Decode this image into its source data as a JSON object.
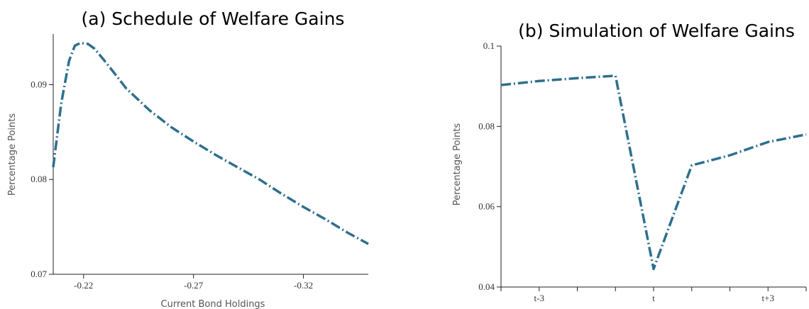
{
  "chart_data": [
    {
      "type": "line",
      "title": "(a) Schedule of Welfare Gains",
      "xlabel": "Current Bond Holdings",
      "ylabel": "Percentage Points",
      "x_reversed": true,
      "xlim": [
        -0.2062,
        -0.3495
      ],
      "ylim": [
        0.07,
        0.095
      ],
      "xticks": [
        -0.27,
        -0.22,
        -0.32
      ],
      "xtick_labels": [
        "-0.27",
        "-0.22",
        "-0.32"
      ],
      "yticks": [
        0.07,
        0.08,
        0.09
      ],
      "ytick_labels": [
        "0.07",
        "0.08",
        "0.09"
      ],
      "grid": false,
      "series": [
        {
          "color": "#2e6f8e",
          "x": [
            -0.2062,
            -0.2098,
            -0.2134,
            -0.216,
            -0.2186,
            -0.222,
            -0.225,
            -0.2307,
            -0.2394,
            -0.25,
            -0.26,
            -0.27,
            -0.28,
            -0.29,
            -0.3,
            -0.31,
            -0.32,
            -0.33,
            -0.34,
            -0.3495
          ],
          "y": [
            0.0813,
            0.088,
            0.0925,
            0.0941,
            0.0944,
            0.0943,
            0.0938,
            0.0922,
            0.0896,
            0.0873,
            0.0855,
            0.084,
            0.0826,
            0.0813,
            0.08,
            0.0785,
            0.0771,
            0.0758,
            0.0744,
            0.0732
          ]
        }
      ]
    },
    {
      "type": "line",
      "title": "(b) Simulation of Welfare Gains",
      "xlabel": "",
      "ylabel": "Percentage Points",
      "xlim": [
        -4,
        4
      ],
      "ylim": [
        0.04,
        0.1
      ],
      "xticks": [
        -3,
        0,
        3
      ],
      "xtick_labels": [
        "t-3",
        "t",
        "t+3"
      ],
      "minor_xticks": [
        -4,
        -2,
        -1,
        1,
        2,
        4
      ],
      "yticks": [
        0.04,
        0.06,
        0.08,
        0.1
      ],
      "ytick_labels": [
        "0.04",
        "0.06",
        "0.08",
        "0.1"
      ],
      "grid": false,
      "series": [
        {
          "color": "#2e6f8e",
          "x": [
            -4,
            -3,
            -2,
            -1,
            0,
            1,
            2,
            3,
            4
          ],
          "y": [
            0.0903,
            0.0913,
            0.092,
            0.0926,
            0.0445,
            0.0703,
            0.0728,
            0.0761,
            0.078
          ]
        }
      ]
    }
  ]
}
